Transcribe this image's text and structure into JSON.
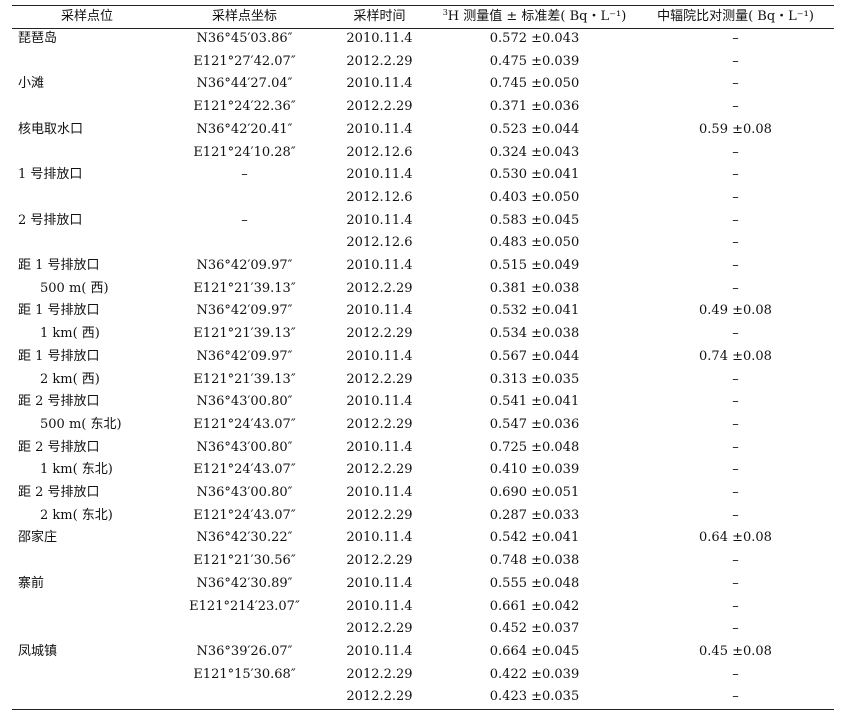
{
  "table": {
    "headers": {
      "site": "采样点位",
      "coord": "采样点坐标",
      "time": "采样时间",
      "measured_sup": "3",
      "measured": "H 测量值 ± 标准差( Bq・L⁻¹)",
      "compare": "中辐院比对测量( Bq・L⁻¹)"
    },
    "rows": [
      {
        "site": "琵琶岛",
        "coord": "N36°45′03.86″",
        "time": "2010.11.4",
        "value": "0.572 ±0.043",
        "compare": "–"
      },
      {
        "site": "",
        "coord": "E121°27′42.07″",
        "time": "2012.2.29",
        "value": "0.475 ±0.039",
        "compare": "–"
      },
      {
        "site": "小滩",
        "coord": "N36°44′27.04″",
        "time": "2010.11.4",
        "value": "0.745 ±0.050",
        "compare": "–"
      },
      {
        "site": "",
        "coord": "E121°24′22.36″",
        "time": "2012.2.29",
        "value": "0.371 ±0.036",
        "compare": "–"
      },
      {
        "site": "核电取水口",
        "coord": "N36°42′20.41″",
        "time": "2010.11.4",
        "value": "0.523 ±0.044",
        "compare": "0.59 ±0.08"
      },
      {
        "site": "",
        "coord": "E121°24′10.28″",
        "time": "2012.12.6",
        "value": "0.324 ±0.043",
        "compare": "–"
      },
      {
        "site": "1 号排放口",
        "coord": "–",
        "time": "2010.11.4",
        "value": "0.530 ±0.041",
        "compare": "–"
      },
      {
        "site": "",
        "coord": "",
        "time": "2012.12.6",
        "value": "0.403 ±0.050",
        "compare": "–"
      },
      {
        "site": "2 号排放口",
        "coord": "–",
        "time": "2010.11.4",
        "value": "0.583 ±0.045",
        "compare": "–"
      },
      {
        "site": "",
        "coord": "",
        "time": "2012.12.6",
        "value": "0.483 ±0.050",
        "compare": "–"
      },
      {
        "site": "距 1 号排放口",
        "coord": "N36°42′09.97″",
        "time": "2010.11.4",
        "value": "0.515 ±0.049",
        "compare": "–"
      },
      {
        "site": "500 m( 西)",
        "indent": true,
        "coord": "E121°21′39.13″",
        "time": "2012.2.29",
        "value": "0.381 ±0.038",
        "compare": "–"
      },
      {
        "site": "距 1 号排放口",
        "coord": "N36°42′09.97″",
        "time": "2010.11.4",
        "value": "0.532 ±0.041",
        "compare": "0.49 ±0.08"
      },
      {
        "site": "1 km( 西)",
        "indent": true,
        "coord": "E121°21′39.13″",
        "time": "2012.2.29",
        "value": "0.534 ±0.038",
        "compare": "–"
      },
      {
        "site": "距 1 号排放口",
        "coord": "N36°42′09.97″",
        "time": "2010.11.4",
        "value": "0.567 ±0.044",
        "compare": "0.74 ±0.08"
      },
      {
        "site": "2 km( 西)",
        "indent": true,
        "coord": "E121°21′39.13″",
        "time": "2012.2.29",
        "value": "0.313 ±0.035",
        "compare": "–"
      },
      {
        "site": "距 2 号排放口",
        "coord": "N36°43′00.80″",
        "time": "2010.11.4",
        "value": "0.541 ±0.041",
        "compare": "–"
      },
      {
        "site": "500 m( 东北)",
        "indent": true,
        "coord": "E121°24′43.07″",
        "time": "2012.2.29",
        "value": "0.547 ±0.036",
        "compare": "–"
      },
      {
        "site": "距 2 号排放口",
        "coord": "N36°43′00.80″",
        "time": "2010.11.4",
        "value": "0.725 ±0.048",
        "compare": "–"
      },
      {
        "site": "1 km( 东北)",
        "indent": true,
        "coord": "E121°24′43.07″",
        "time": "2012.2.29",
        "value": "0.410 ±0.039",
        "compare": "–"
      },
      {
        "site": "距 2 号排放口",
        "coord": "N36°43′00.80″",
        "time": "2010.11.4",
        "value": "0.690 ±0.051",
        "compare": "–"
      },
      {
        "site": "2 km( 东北)",
        "indent": true,
        "coord": "E121°24′43.07″",
        "time": "2012.2.29",
        "value": "0.287 ±0.033",
        "compare": "–"
      },
      {
        "site": "邵家庄",
        "coord": "N36°42′30.22″",
        "time": "2010.11.4",
        "value": "0.542 ±0.041",
        "compare": "0.64 ±0.08"
      },
      {
        "site": "",
        "coord": "E121°21′30.56″",
        "time": "2012.2.29",
        "value": "0.748 ±0.038",
        "compare": "–"
      },
      {
        "site": "寨前",
        "coord": "N36°42′30.89″",
        "time": "2010.11.4",
        "value": "0.555 ±0.048",
        "compare": "–"
      },
      {
        "site": "",
        "coord": "E121°214′23.07″",
        "time": "2010.11.4",
        "value": "0.661 ±0.042",
        "compare": "–"
      },
      {
        "site": "",
        "coord": "",
        "time": "2012.2.29",
        "value": "0.452 ±0.037",
        "compare": "–"
      },
      {
        "site": "凤城镇",
        "coord": "N36°39′26.07″",
        "time": "2010.11.4",
        "value": "0.664 ±0.045",
        "compare": "0.45 ±0.08"
      },
      {
        "site": "",
        "coord": "E121°15′30.68″",
        "time": "2012.2.29",
        "value": "0.422 ±0.039",
        "compare": "–"
      },
      {
        "site": "",
        "coord": "",
        "time": "2012.2.29",
        "value": "0.423 ±0.035",
        "compare": "–"
      }
    ]
  }
}
